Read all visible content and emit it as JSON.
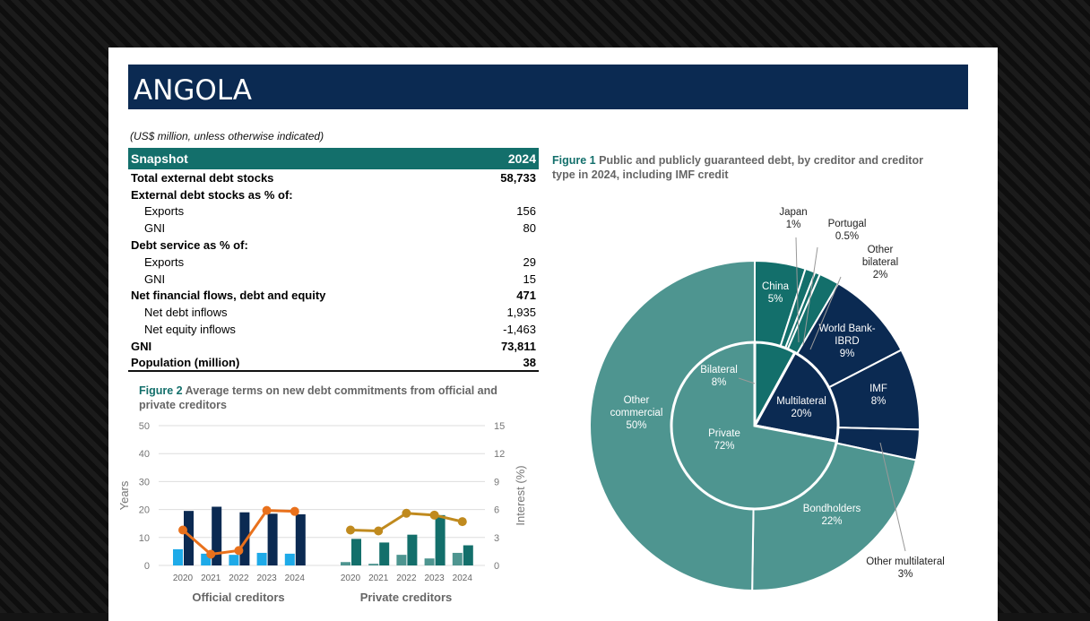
{
  "title": "ANGOLA",
  "unit_note": "(US$ million, unless otherwise indicated)",
  "snapshot": {
    "header": "Snapshot",
    "year": "2024",
    "rows": [
      {
        "label": "Total external debt stocks",
        "value": "58,733",
        "style": "b"
      },
      {
        "label": "External debt stocks as % of:",
        "value": "",
        "style": "b"
      },
      {
        "label": "Exports",
        "value": "156",
        "style": "i"
      },
      {
        "label": "GNI",
        "value": "80",
        "style": "i"
      },
      {
        "label": "Debt service as % of:",
        "value": "",
        "style": "b"
      },
      {
        "label": "Exports",
        "value": "29",
        "style": "i"
      },
      {
        "label": "GNI",
        "value": "15",
        "style": "i"
      },
      {
        "label": "Net financial flows, debt and equity",
        "value": "471",
        "style": "b"
      },
      {
        "label": "Net debt inflows",
        "value": "1,935",
        "style": "i"
      },
      {
        "label": "Net equity inflows",
        "value": "-1,463",
        "style": "i"
      },
      {
        "label": "GNI",
        "value": "73,811",
        "style": "b"
      },
      {
        "label": "Population (million)",
        "value": "38",
        "style": "b"
      }
    ]
  },
  "colors": {
    "navy": "#0b2a52",
    "teal": "#136f6b",
    "lightteal": "#4e9590",
    "sky": "#1eaae8",
    "orange": "#e9711c",
    "gold": "#c08a1e"
  },
  "chart_data": [
    {
      "type": "bar",
      "fig": "Figure 2",
      "title": "Average terms on new debt commitments from official and private creditors",
      "ylabel": "Years",
      "y2label": "Interest (%)",
      "ylim": [
        0,
        50
      ],
      "y2lim": [
        0,
        15
      ],
      "yticks": [
        "0",
        "10",
        "20",
        "30",
        "40",
        "50"
      ],
      "y2ticks": [
        "0",
        "3",
        "6",
        "9",
        "12",
        "15"
      ],
      "groups": [
        {
          "name": "Official creditors",
          "categories": [
            "2020",
            "2021",
            "2022",
            "2023",
            "2024"
          ],
          "grace": [
            5.8,
            4.2,
            3.8,
            4.5,
            4.2
          ],
          "maturity": [
            19.5,
            21,
            19,
            18.5,
            18.3
          ],
          "interest": [
            3.8,
            1.2,
            1.6,
            5.9,
            5.8
          ]
        },
        {
          "name": "Private creditors",
          "categories": [
            "2020",
            "2021",
            "2022",
            "2023",
            "2024"
          ],
          "grace": [
            1.2,
            0.6,
            3.8,
            2.5,
            4.5
          ],
          "maturity": [
            9.5,
            8.2,
            11,
            18,
            7.2
          ],
          "interest": [
            3.8,
            3.7,
            5.6,
            5.4,
            4.7
          ]
        }
      ]
    },
    {
      "type": "pie",
      "fig": "Figure 1",
      "title": "Public and publicly guaranteed debt, by creditor and creditor type in 2024, including IMF credit",
      "inner": [
        {
          "label": "Bilateral",
          "pct": "8%",
          "value": 8,
          "color": "teal"
        },
        {
          "label": "Multilateral",
          "pct": "20%",
          "value": 20,
          "color": "navy"
        },
        {
          "label": "Private",
          "pct": "72%",
          "value": 72,
          "color": "lightteal"
        }
      ],
      "outer": [
        {
          "label": "China",
          "pct": "5%",
          "value": 5,
          "color": "teal"
        },
        {
          "label": "Japan",
          "pct": "1%",
          "value": 1,
          "color": "teal"
        },
        {
          "label": "Portugal",
          "pct": "0.5%",
          "value": 0.5,
          "color": "teal"
        },
        {
          "label": "Other bilateral",
          "pct": "2%",
          "value": 2,
          "color": "teal"
        },
        {
          "label": "World Bank-IBRD",
          "pct": "9%",
          "value": 9,
          "color": "navy"
        },
        {
          "label": "IMF",
          "pct": "8%",
          "value": 8,
          "color": "navy"
        },
        {
          "label": "Other multilateral",
          "pct": "3%",
          "value": 3,
          "color": "navy"
        },
        {
          "label": "Bondholders",
          "pct": "22%",
          "value": 22,
          "color": "lightteal"
        },
        {
          "label": "Other commercial",
          "pct": "50%",
          "value": 50,
          "color": "lightteal"
        }
      ]
    }
  ]
}
